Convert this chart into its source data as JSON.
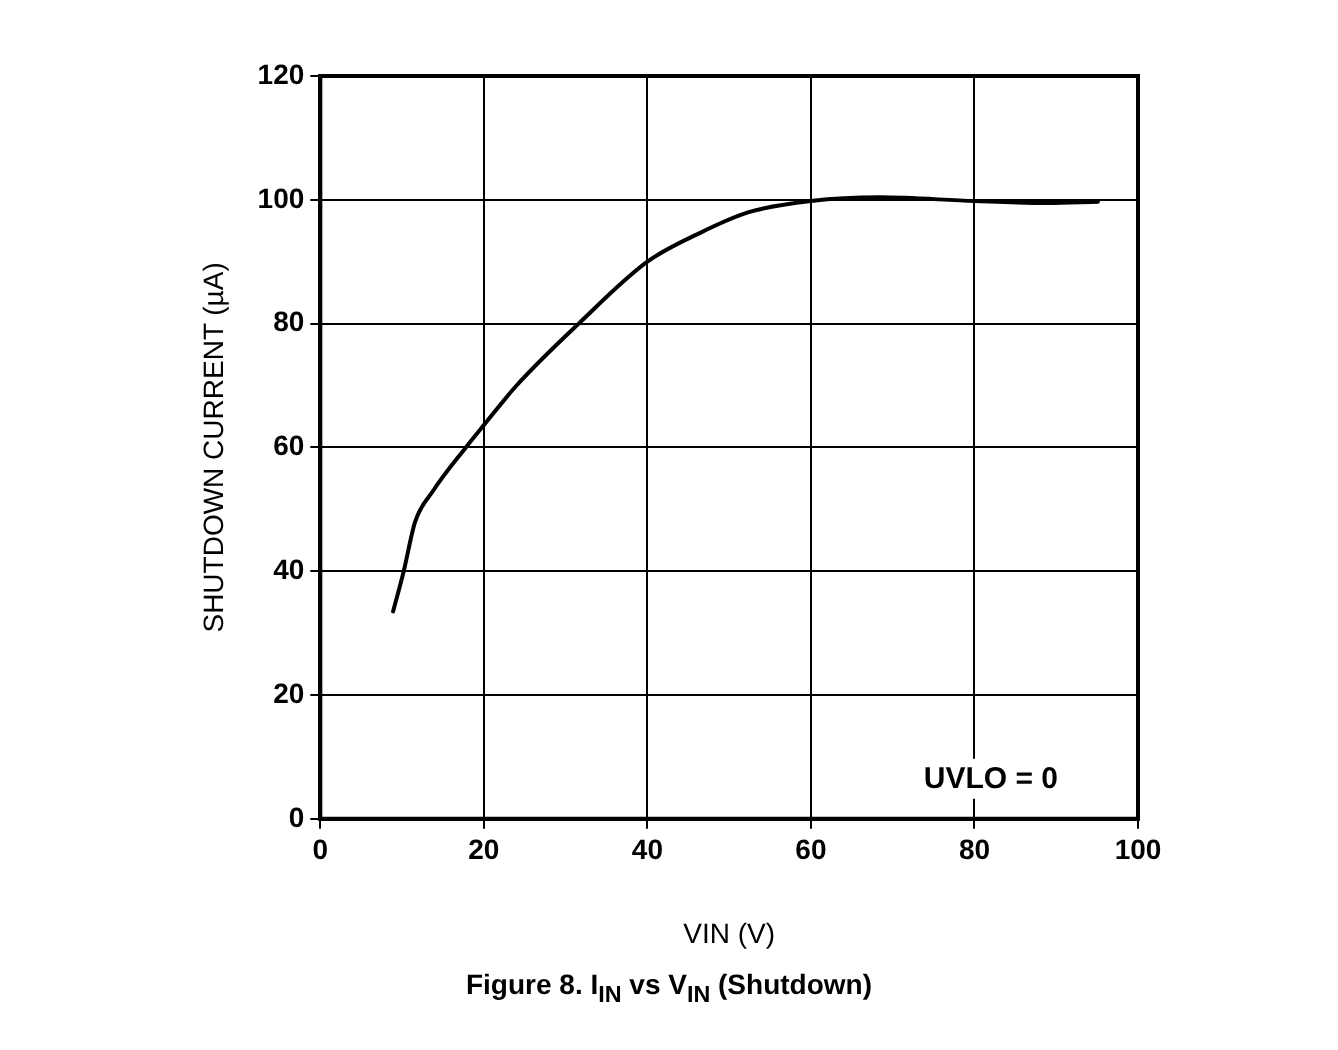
{
  "chart_data": {
    "type": "line",
    "title": "Figure 8. I$_{IN}$ vs V$_{IN}$ (Shutdown)",
    "xlabel": "VIN (V)",
    "ylabel": "SHUTDOWN CURRENT (µA)",
    "annotations": [
      "UVLO = 0"
    ],
    "series": [
      {
        "color": "#000000",
        "x": [
          8.9,
          10.2,
          11.6,
          13.8,
          17.8,
          20,
          24,
          31.6,
          40,
          46.2,
          52.4,
          60,
          68.4,
          80,
          88.9,
          95.1
        ],
        "values": [
          33.5,
          40,
          48,
          53,
          60,
          63.6,
          70,
          80,
          90,
          94.5,
          98,
          99.8,
          100.4,
          99.8,
          99.5,
          99.7
        ]
      }
    ],
    "xlim": [
      0,
      100
    ],
    "xticks": [
      0,
      20,
      40,
      60,
      80,
      100
    ],
    "ylim": [
      0,
      120
    ],
    "yticks": [
      0,
      20,
      40,
      60,
      80,
      100,
      120
    ],
    "grid": true,
    "legend": false,
    "marker": "none",
    "line_style": "solid"
  }
}
